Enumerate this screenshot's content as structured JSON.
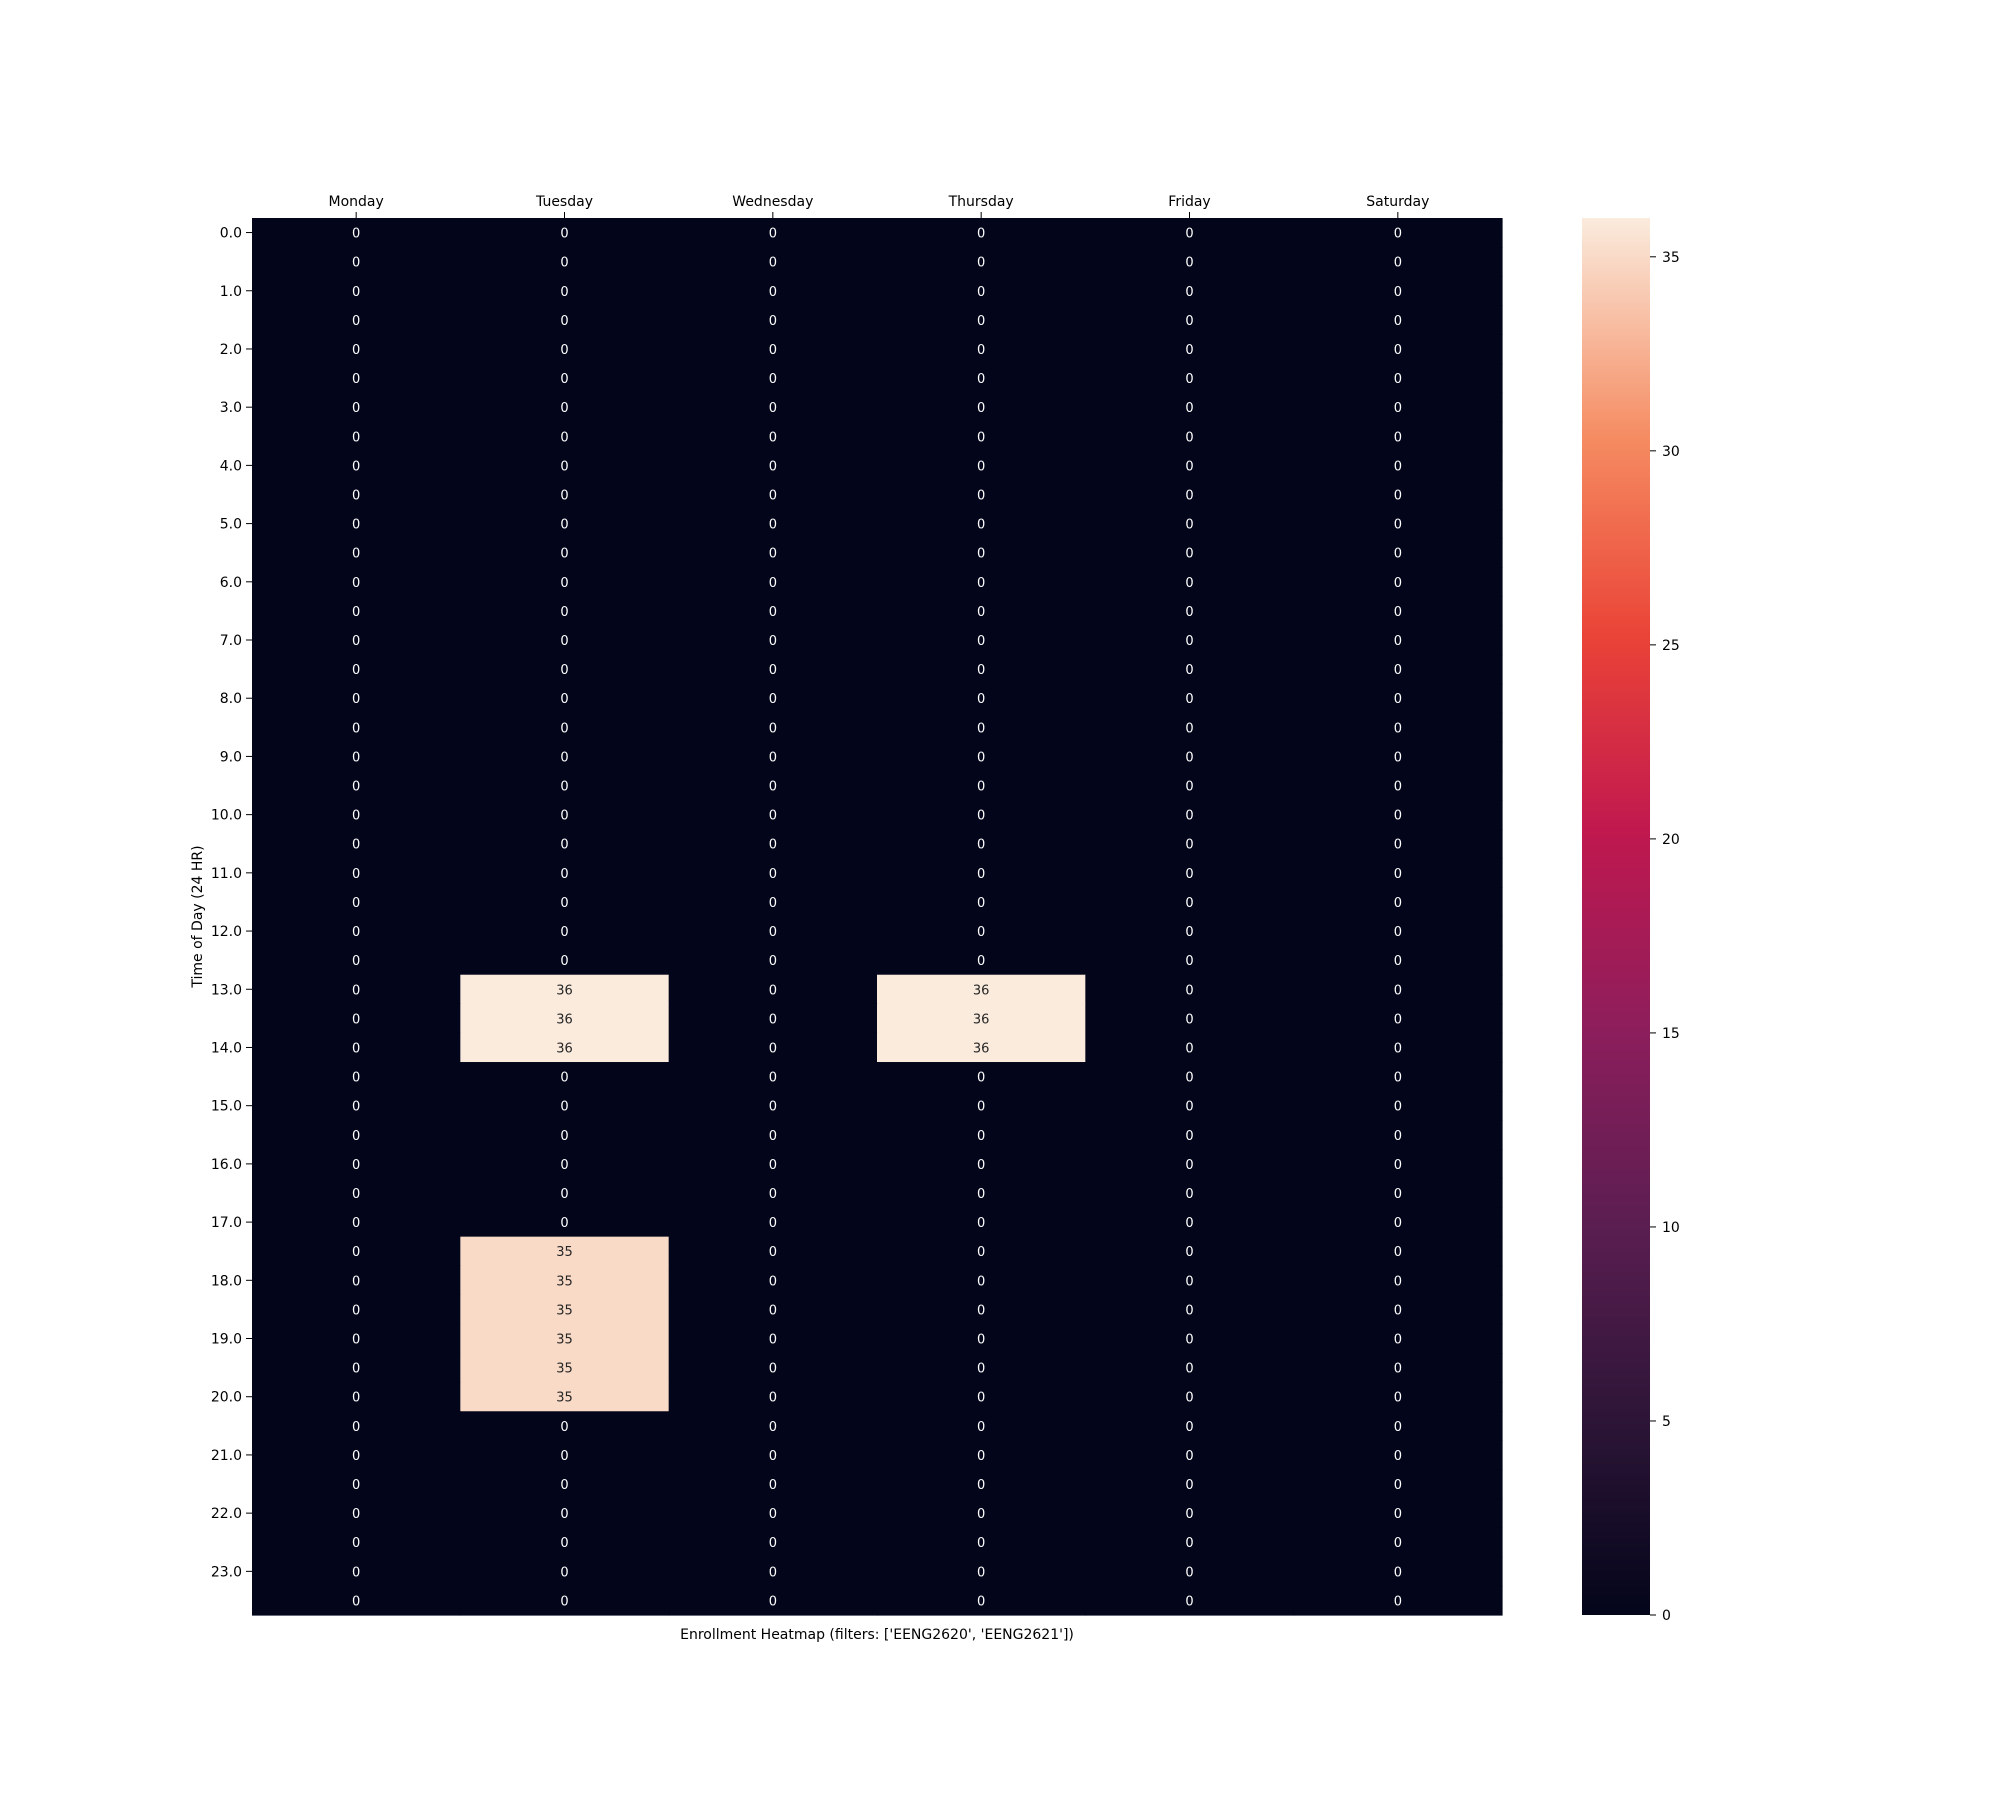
{
  "chart_data": {
    "type": "heatmap",
    "title": "",
    "xlabel": "Enrollment Heatmap (filters: ['EENG2620', 'EENG2621'])",
    "ylabel": "Time of Day (24 HR)",
    "columns": [
      "Monday",
      "Tuesday",
      "Wednesday",
      "Thursday",
      "Friday",
      "Saturday"
    ],
    "row_tick_labels": [
      "0.0",
      "1.0",
      "2.0",
      "3.0",
      "4.0",
      "5.0",
      "6.0",
      "7.0",
      "8.0",
      "9.0",
      "10.0",
      "11.0",
      "12.0",
      "13.0",
      "14.0",
      "15.0",
      "16.0",
      "17.0",
      "18.0",
      "19.0",
      "20.0",
      "21.0",
      "22.0",
      "23.0"
    ],
    "rows": [
      0.0,
      0.5,
      1.0,
      1.5,
      2.0,
      2.5,
      3.0,
      3.5,
      4.0,
      4.5,
      5.0,
      5.5,
      6.0,
      6.5,
      7.0,
      7.5,
      8.0,
      8.5,
      9.0,
      9.5,
      10.0,
      10.5,
      11.0,
      11.5,
      12.0,
      12.5,
      13.0,
      13.5,
      14.0,
      14.5,
      15.0,
      15.5,
      16.0,
      16.5,
      17.0,
      17.5,
      18.0,
      18.5,
      19.0,
      19.5,
      20.0,
      20.5,
      21.0,
      21.5,
      22.0,
      22.5,
      23.0,
      23.5
    ],
    "values": [
      [
        0,
        0,
        0,
        0,
        0,
        0
      ],
      [
        0,
        0,
        0,
        0,
        0,
        0
      ],
      [
        0,
        0,
        0,
        0,
        0,
        0
      ],
      [
        0,
        0,
        0,
        0,
        0,
        0
      ],
      [
        0,
        0,
        0,
        0,
        0,
        0
      ],
      [
        0,
        0,
        0,
        0,
        0,
        0
      ],
      [
        0,
        0,
        0,
        0,
        0,
        0
      ],
      [
        0,
        0,
        0,
        0,
        0,
        0
      ],
      [
        0,
        0,
        0,
        0,
        0,
        0
      ],
      [
        0,
        0,
        0,
        0,
        0,
        0
      ],
      [
        0,
        0,
        0,
        0,
        0,
        0
      ],
      [
        0,
        0,
        0,
        0,
        0,
        0
      ],
      [
        0,
        0,
        0,
        0,
        0,
        0
      ],
      [
        0,
        0,
        0,
        0,
        0,
        0
      ],
      [
        0,
        0,
        0,
        0,
        0,
        0
      ],
      [
        0,
        0,
        0,
        0,
        0,
        0
      ],
      [
        0,
        0,
        0,
        0,
        0,
        0
      ],
      [
        0,
        0,
        0,
        0,
        0,
        0
      ],
      [
        0,
        0,
        0,
        0,
        0,
        0
      ],
      [
        0,
        0,
        0,
        0,
        0,
        0
      ],
      [
        0,
        0,
        0,
        0,
        0,
        0
      ],
      [
        0,
        0,
        0,
        0,
        0,
        0
      ],
      [
        0,
        0,
        0,
        0,
        0,
        0
      ],
      [
        0,
        0,
        0,
        0,
        0,
        0
      ],
      [
        0,
        0,
        0,
        0,
        0,
        0
      ],
      [
        0,
        0,
        0,
        0,
        0,
        0
      ],
      [
        0,
        36,
        0,
        36,
        0,
        0
      ],
      [
        0,
        36,
        0,
        36,
        0,
        0
      ],
      [
        0,
        36,
        0,
        36,
        0,
        0
      ],
      [
        0,
        0,
        0,
        0,
        0,
        0
      ],
      [
        0,
        0,
        0,
        0,
        0,
        0
      ],
      [
        0,
        0,
        0,
        0,
        0,
        0
      ],
      [
        0,
        0,
        0,
        0,
        0,
        0
      ],
      [
        0,
        0,
        0,
        0,
        0,
        0
      ],
      [
        0,
        0,
        0,
        0,
        0,
        0
      ],
      [
        0,
        35,
        0,
        0,
        0,
        0
      ],
      [
        0,
        35,
        0,
        0,
        0,
        0
      ],
      [
        0,
        35,
        0,
        0,
        0,
        0
      ],
      [
        0,
        35,
        0,
        0,
        0,
        0
      ],
      [
        0,
        35,
        0,
        0,
        0,
        0
      ],
      [
        0,
        35,
        0,
        0,
        0,
        0
      ],
      [
        0,
        0,
        0,
        0,
        0,
        0
      ],
      [
        0,
        0,
        0,
        0,
        0,
        0
      ],
      [
        0,
        0,
        0,
        0,
        0,
        0
      ],
      [
        0,
        0,
        0,
        0,
        0,
        0
      ],
      [
        0,
        0,
        0,
        0,
        0,
        0
      ],
      [
        0,
        0,
        0,
        0,
        0,
        0
      ],
      [
        0,
        0,
        0,
        0,
        0,
        0
      ]
    ],
    "colorbar": {
      "min": 0,
      "max": 36,
      "ticks": [
        0,
        5,
        10,
        15,
        20,
        25,
        30,
        35
      ],
      "colormap": "rocket"
    },
    "grid": false,
    "legend": "colorbar-right"
  }
}
